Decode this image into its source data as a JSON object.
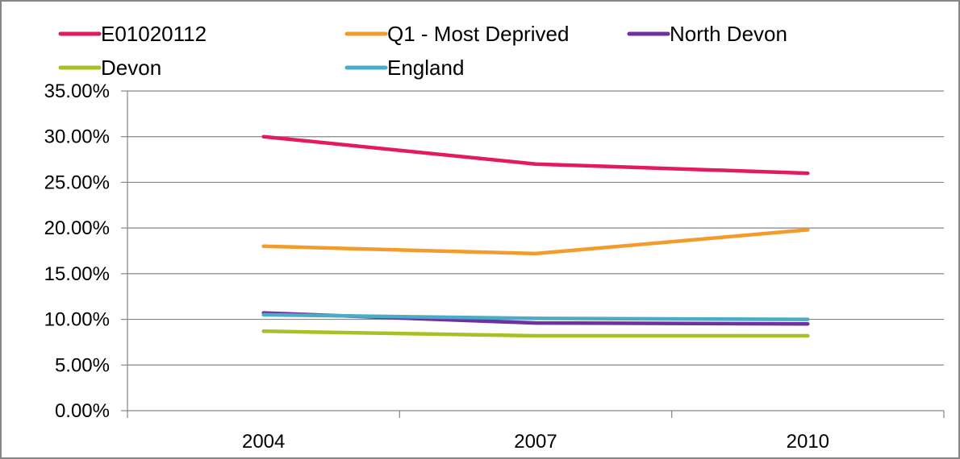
{
  "chart_data": {
    "type": "line",
    "title": "",
    "xlabel": "",
    "ylabel": "",
    "categories": [
      "2004",
      "2007",
      "2010"
    ],
    "ylim": [
      0,
      35
    ],
    "yticks": [
      0,
      5,
      10,
      15,
      20,
      25,
      30,
      35
    ],
    "ytick_labels": [
      "0.00%",
      "5.00%",
      "10.00%",
      "15.00%",
      "20.00%",
      "25.00%",
      "30.00%",
      "35.00%"
    ],
    "grid": true,
    "legend_position": "top",
    "series": [
      {
        "name": "E01020112",
        "color": "#e31a5c",
        "values": [
          30.0,
          27.0,
          26.0
        ]
      },
      {
        "name": "Q1 - Most Deprived",
        "color": "#f39c2b",
        "values": [
          18.0,
          17.2,
          19.8
        ]
      },
      {
        "name": "North Devon",
        "color": "#7030a0",
        "values": [
          10.7,
          9.6,
          9.5
        ]
      },
      {
        "name": "Devon",
        "color": "#a8c023",
        "values": [
          8.7,
          8.2,
          8.2
        ]
      },
      {
        "name": "England",
        "color": "#4bacc6",
        "values": [
          10.5,
          10.1,
          10.0
        ]
      }
    ]
  }
}
